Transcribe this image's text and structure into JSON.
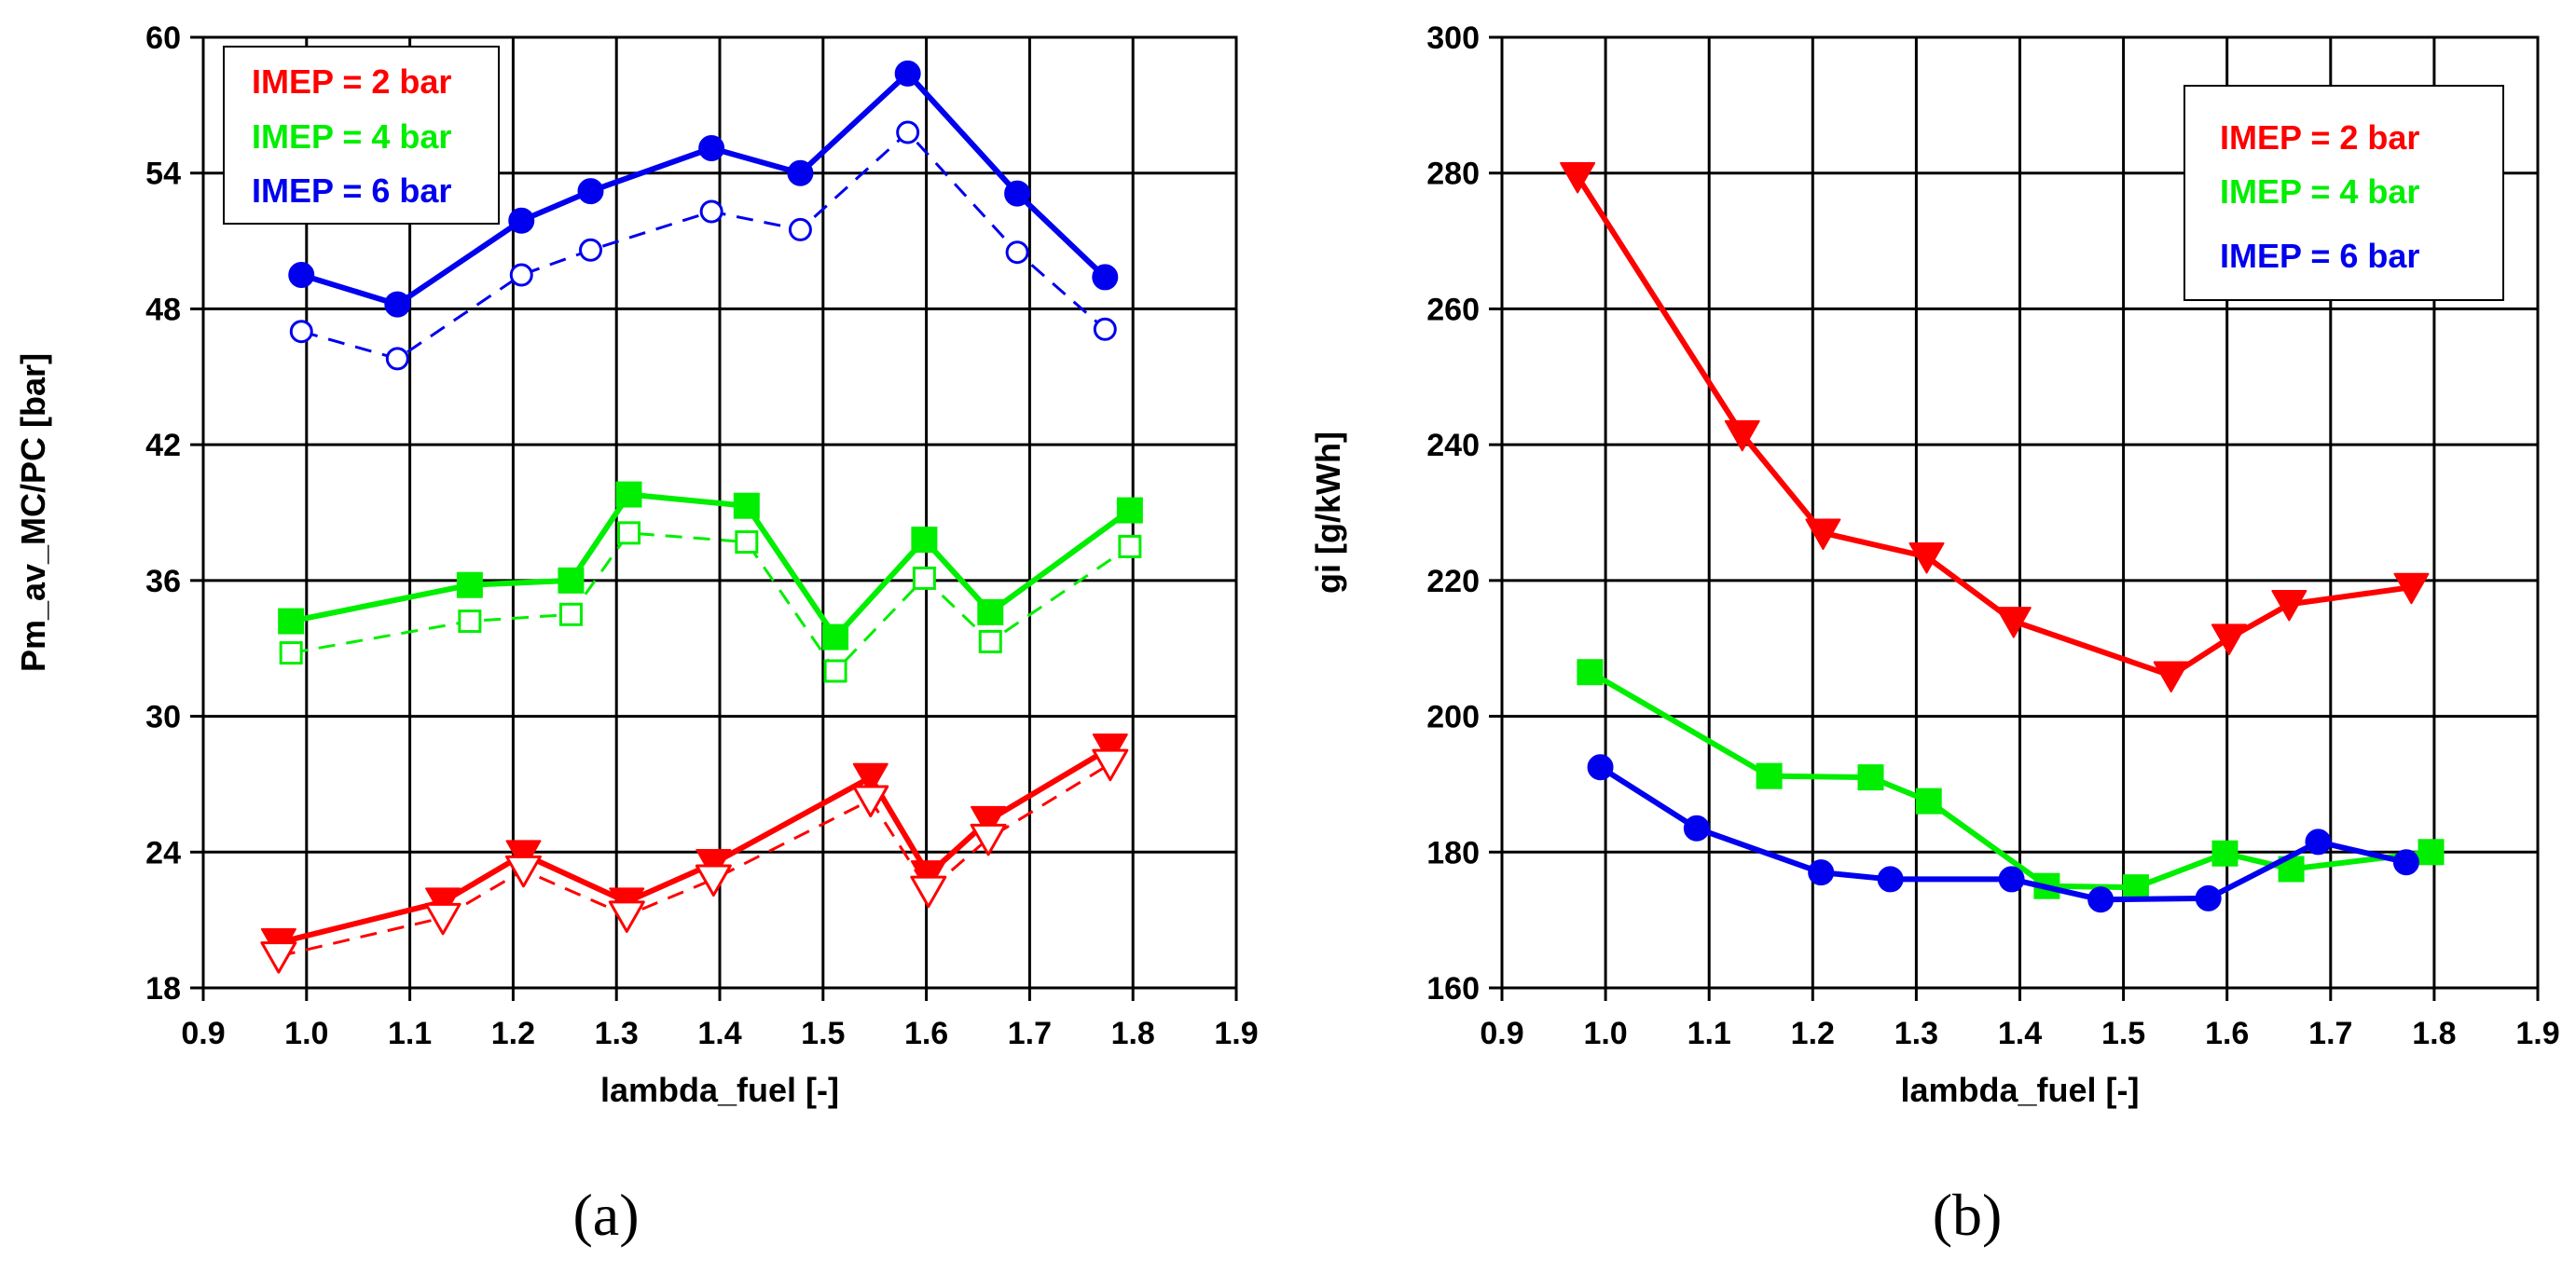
{
  "chart_data": [
    {
      "type": "line",
      "panel_label": "(a)",
      "xlabel": "lambda_fuel [-]",
      "ylabel": "Pm_av_MC/PC [bar]",
      "xlim": [
        0.9,
        1.9
      ],
      "ylim": [
        18,
        60
      ],
      "xticks": [
        "0.9",
        "1.0",
        "1.1",
        "1.2",
        "1.3",
        "1.4",
        "1.5",
        "1.6",
        "1.7",
        "1.8",
        "1.9"
      ],
      "yticks": [
        "18",
        "24",
        "30",
        "36",
        "42",
        "48",
        "54",
        "60"
      ],
      "xtick_values": [
        0.9,
        1.0,
        1.1,
        1.2,
        1.3,
        1.4,
        1.5,
        1.6,
        1.7,
        1.8,
        1.9
      ],
      "ytick_values": [
        18,
        24,
        30,
        36,
        42,
        48,
        54,
        60
      ],
      "grid": true,
      "legend": {
        "position": "top-left",
        "entries": [
          {
            "label": "IMEP = 2 bar",
            "color": "#ff0000"
          },
          {
            "label": "IMEP = 4 bar",
            "color": "#00ee00"
          },
          {
            "label": "IMEP = 6 bar",
            "color": "#0000ee"
          }
        ]
      },
      "series": [
        {
          "name": "IMEP = 6 bar",
          "variant": "solid",
          "color": "#0000ee",
          "marker": "circle",
          "filled": true,
          "x": [
            0.995,
            1.088,
            1.208,
            1.275,
            1.392,
            1.478,
            1.582,
            1.688,
            1.773
          ],
          "y": [
            49.5,
            48.2,
            51.9,
            53.2,
            55.1,
            54.0,
            58.4,
            53.1,
            49.4
          ]
        },
        {
          "name": "IMEP = 6 bar",
          "variant": "dashed",
          "color": "#0000ee",
          "marker": "circle",
          "filled": false,
          "x": [
            0.995,
            1.088,
            1.208,
            1.275,
            1.392,
            1.478,
            1.582,
            1.688,
            1.773
          ],
          "y": [
            47.0,
            45.8,
            49.5,
            50.6,
            52.3,
            51.5,
            55.8,
            50.5,
            47.1
          ]
        },
        {
          "name": "IMEP = 4 bar",
          "variant": "solid",
          "color": "#00ee00",
          "marker": "square",
          "filled": true,
          "x": [
            0.985,
            1.158,
            1.256,
            1.312,
            1.426,
            1.512,
            1.598,
            1.662,
            1.797
          ],
          "y": [
            34.2,
            35.8,
            36.0,
            39.8,
            39.3,
            33.5,
            37.8,
            34.6,
            39.1
          ]
        },
        {
          "name": "IMEP = 4 bar",
          "variant": "dashed",
          "color": "#00ee00",
          "marker": "square",
          "filled": false,
          "x": [
            0.985,
            1.158,
            1.256,
            1.312,
            1.426,
            1.512,
            1.598,
            1.662,
            1.797
          ],
          "y": [
            32.8,
            34.2,
            34.5,
            38.1,
            37.7,
            32.0,
            36.1,
            33.3,
            37.5
          ]
        },
        {
          "name": "IMEP = 2 bar",
          "variant": "solid",
          "color": "#ff0000",
          "marker": "triangle-down",
          "filled": true,
          "x": [
            0.973,
            1.132,
            1.21,
            1.31,
            1.394,
            1.546,
            1.602,
            1.66,
            1.778
          ],
          "y": [
            20.0,
            21.8,
            23.9,
            21.8,
            23.5,
            27.3,
            23.0,
            25.4,
            28.6
          ]
        },
        {
          "name": "IMEP = 2 bar",
          "variant": "dashed",
          "color": "#ff0000",
          "marker": "triangle-down",
          "filled": false,
          "x": [
            0.973,
            1.132,
            1.21,
            1.31,
            1.394,
            1.546,
            1.602,
            1.66,
            1.778
          ],
          "y": [
            19.4,
            21.1,
            23.2,
            21.2,
            22.8,
            26.3,
            22.3,
            24.6,
            27.9
          ]
        }
      ]
    },
    {
      "type": "line",
      "panel_label": "(b)",
      "xlabel": "lambda_fuel [-]",
      "ylabel": "gi [g/kWh]",
      "xlim": [
        0.9,
        1.9
      ],
      "ylim": [
        160,
        300
      ],
      "xticks": [
        "0.9",
        "1.0",
        "1.1",
        "1.2",
        "1.3",
        "1.4",
        "1.5",
        "1.6",
        "1.7",
        "1.8",
        "1.9"
      ],
      "yticks": [
        "160",
        "180",
        "200",
        "220",
        "240",
        "260",
        "280",
        "300"
      ],
      "xtick_values": [
        0.9,
        1.0,
        1.1,
        1.2,
        1.3,
        1.4,
        1.5,
        1.6,
        1.7,
        1.8,
        1.9
      ],
      "ytick_values": [
        160,
        180,
        200,
        220,
        240,
        260,
        280,
        300
      ],
      "grid": true,
      "legend": {
        "position": "top-right",
        "entries": [
          {
            "label": "IMEP = 2 bar",
            "color": "#ff0000"
          },
          {
            "label": "IMEP = 4 bar",
            "color": "#00ee00"
          },
          {
            "label": "IMEP = 6 bar",
            "color": "#0000ee"
          }
        ]
      },
      "series": [
        {
          "name": "IMEP = 2 bar",
          "variant": "solid",
          "color": "#ff0000",
          "marker": "triangle-down",
          "filled": true,
          "x": [
            0.973,
            1.132,
            1.21,
            1.31,
            1.394,
            1.546,
            1.602,
            1.66,
            1.778
          ],
          "y": [
            279.5,
            241.5,
            227.0,
            223.5,
            214.0,
            206.0,
            211.5,
            216.5,
            219.0
          ]
        },
        {
          "name": "IMEP = 4 bar",
          "variant": "solid",
          "color": "#00ee00",
          "marker": "square",
          "filled": true,
          "x": [
            0.985,
            1.158,
            1.256,
            1.312,
            1.426,
            1.512,
            1.598,
            1.662,
            1.797
          ],
          "y": [
            206.5,
            191.2,
            191.0,
            187.5,
            175.0,
            174.8,
            179.8,
            177.5,
            180.0
          ]
        },
        {
          "name": "IMEP = 6 bar",
          "variant": "solid",
          "color": "#0000ee",
          "marker": "circle",
          "filled": true,
          "x": [
            0.995,
            1.088,
            1.208,
            1.275,
            1.392,
            1.478,
            1.582,
            1.688,
            1.773
          ],
          "y": [
            192.5,
            183.5,
            177.0,
            176.0,
            176.0,
            173.0,
            173.2,
            181.5,
            178.5
          ]
        }
      ]
    }
  ]
}
